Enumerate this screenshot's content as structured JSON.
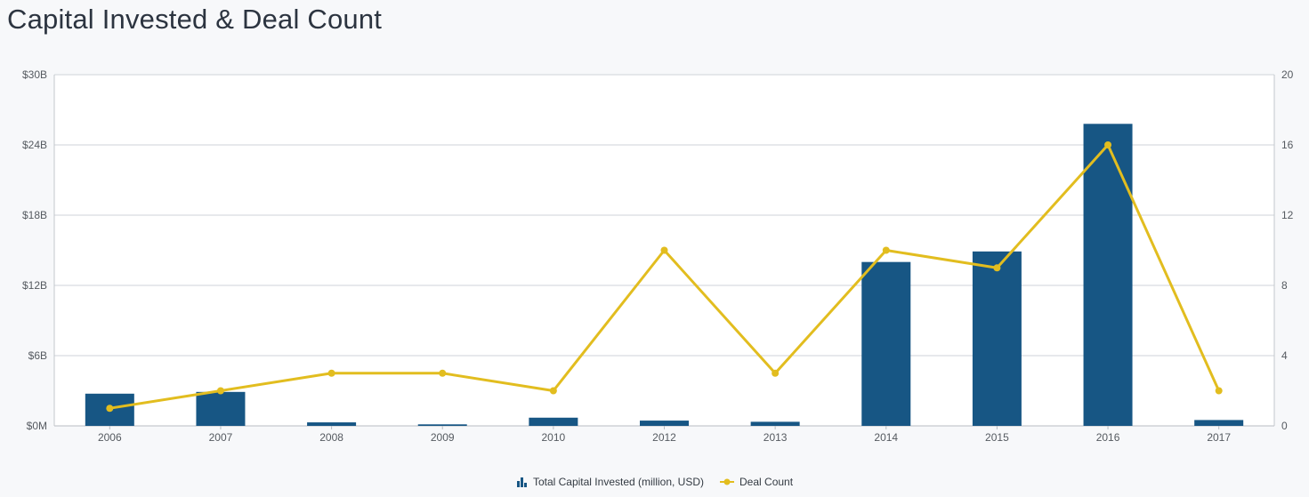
{
  "header": {
    "title": "Capital Invested & Deal Count"
  },
  "colors": {
    "bar": "#175684",
    "line": "#e2bd1f",
    "grid": "#cfd3d8",
    "background": "#ffffff"
  },
  "chart_data": {
    "type": "bar+line",
    "title": "Capital Invested & Deal Count",
    "categories": [
      "2006",
      "2007",
      "2008",
      "2009",
      "2010",
      "2012",
      "2013",
      "2014",
      "2015",
      "2016",
      "2017"
    ],
    "series": [
      {
        "name": "Total Capital Invested (million, USD)",
        "type": "bar",
        "axis": "left",
        "values": [
          2750,
          2900,
          300,
          130,
          700,
          450,
          350,
          14000,
          14900,
          25800,
          500
        ]
      },
      {
        "name": "Deal Count",
        "type": "line",
        "axis": "right",
        "values": [
          1,
          2,
          3,
          3,
          2,
          10,
          3,
          10,
          9,
          16,
          2
        ]
      }
    ],
    "y_left": {
      "ticks": [
        "$0M",
        "$6B",
        "$12B",
        "$18B",
        "$24B",
        "$30B"
      ],
      "range": [
        0,
        30000
      ]
    },
    "y_right": {
      "ticks": [
        "0",
        "4",
        "8",
        "12",
        "16",
        "20"
      ],
      "range": [
        0,
        20
      ]
    },
    "legend_position": "bottom-center",
    "grid": true
  },
  "legend": {
    "bar_label": "Total Capital Invested (million, USD)",
    "line_label": "Deal Count"
  }
}
